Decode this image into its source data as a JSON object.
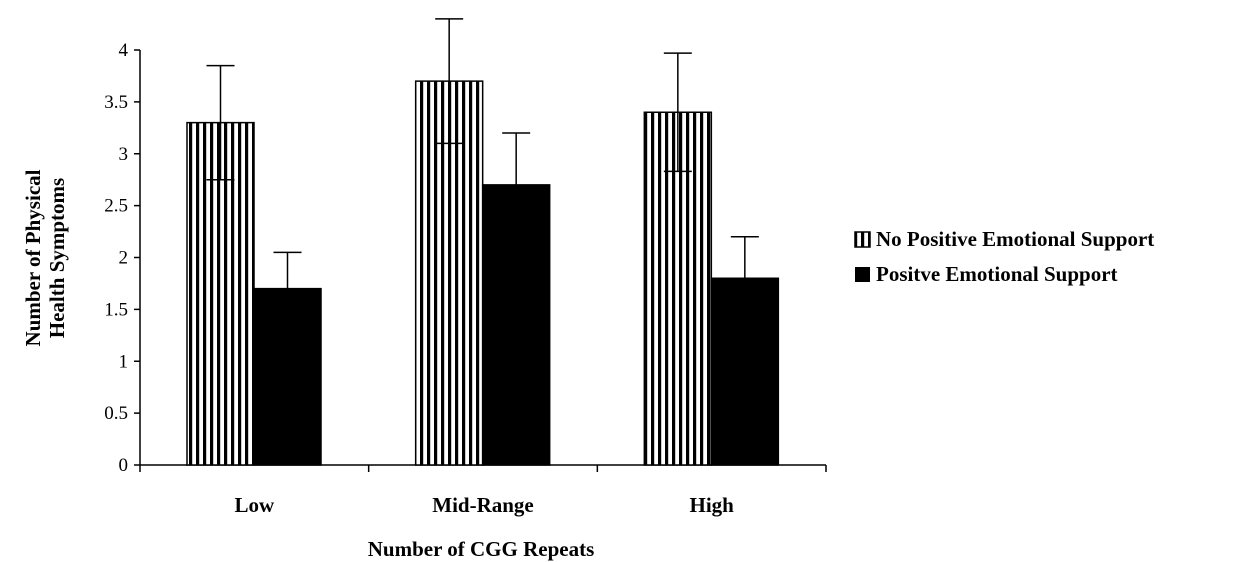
{
  "chart_data": {
    "type": "bar",
    "title": "",
    "xlabel": "Number of CGG Repeats",
    "ylabel": [
      "Number of Physical",
      "Health Symptoms"
    ],
    "categories": [
      "Low",
      "Mid-Range",
      "High"
    ],
    "ylim": [
      0,
      4
    ],
    "yticks": [
      "0",
      "0.5",
      "1",
      "1.5",
      "2",
      "2.5",
      "3",
      "3.5",
      "4"
    ],
    "grid": false,
    "legend_position": "right",
    "series": [
      {
        "name": "No Positive Emotional Support",
        "values": [
          3.3,
          3.7,
          3.4
        ],
        "error": [
          0.55,
          0.6,
          0.57
        ],
        "fill": "vertical-stripes"
      },
      {
        "name": "Positve Emotional Support",
        "values": [
          1.7,
          2.7,
          1.8
        ],
        "error": [
          0.35,
          0.5,
          0.4
        ],
        "fill": "#000000"
      }
    ]
  }
}
